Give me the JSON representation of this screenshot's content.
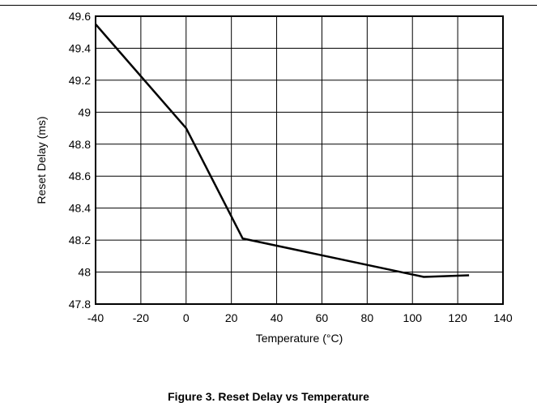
{
  "chart_data": {
    "type": "line",
    "title": "",
    "xlabel": "Temperature (°C)",
    "ylabel": "Reset Delay (ms)",
    "xlim": [
      -40,
      140
    ],
    "ylim": [
      47.8,
      49.6
    ],
    "xticks": [
      -40,
      -20,
      0,
      20,
      40,
      60,
      80,
      100,
      120,
      140
    ],
    "yticks": [
      47.8,
      48,
      48.2,
      48.4,
      48.6,
      48.8,
      49,
      49.2,
      49.4,
      49.6
    ],
    "xtick_labels": [
      "-40",
      "-20",
      "0",
      "20",
      "40",
      "60",
      "80",
      "100",
      "120",
      "140"
    ],
    "ytick_labels": [
      "47.8",
      "48",
      "48.2",
      "48.4",
      "48.6",
      "48.8",
      "49",
      "49.2",
      "49.4",
      "49.6"
    ],
    "grid": true,
    "series": [
      {
        "x": [
          -40,
          0,
          25,
          105,
          125
        ],
        "y": [
          49.55,
          48.9,
          48.21,
          47.97,
          47.98
        ],
        "color": "#000000"
      }
    ]
  },
  "caption": "Figure 3. Reset Delay vs Temperature"
}
